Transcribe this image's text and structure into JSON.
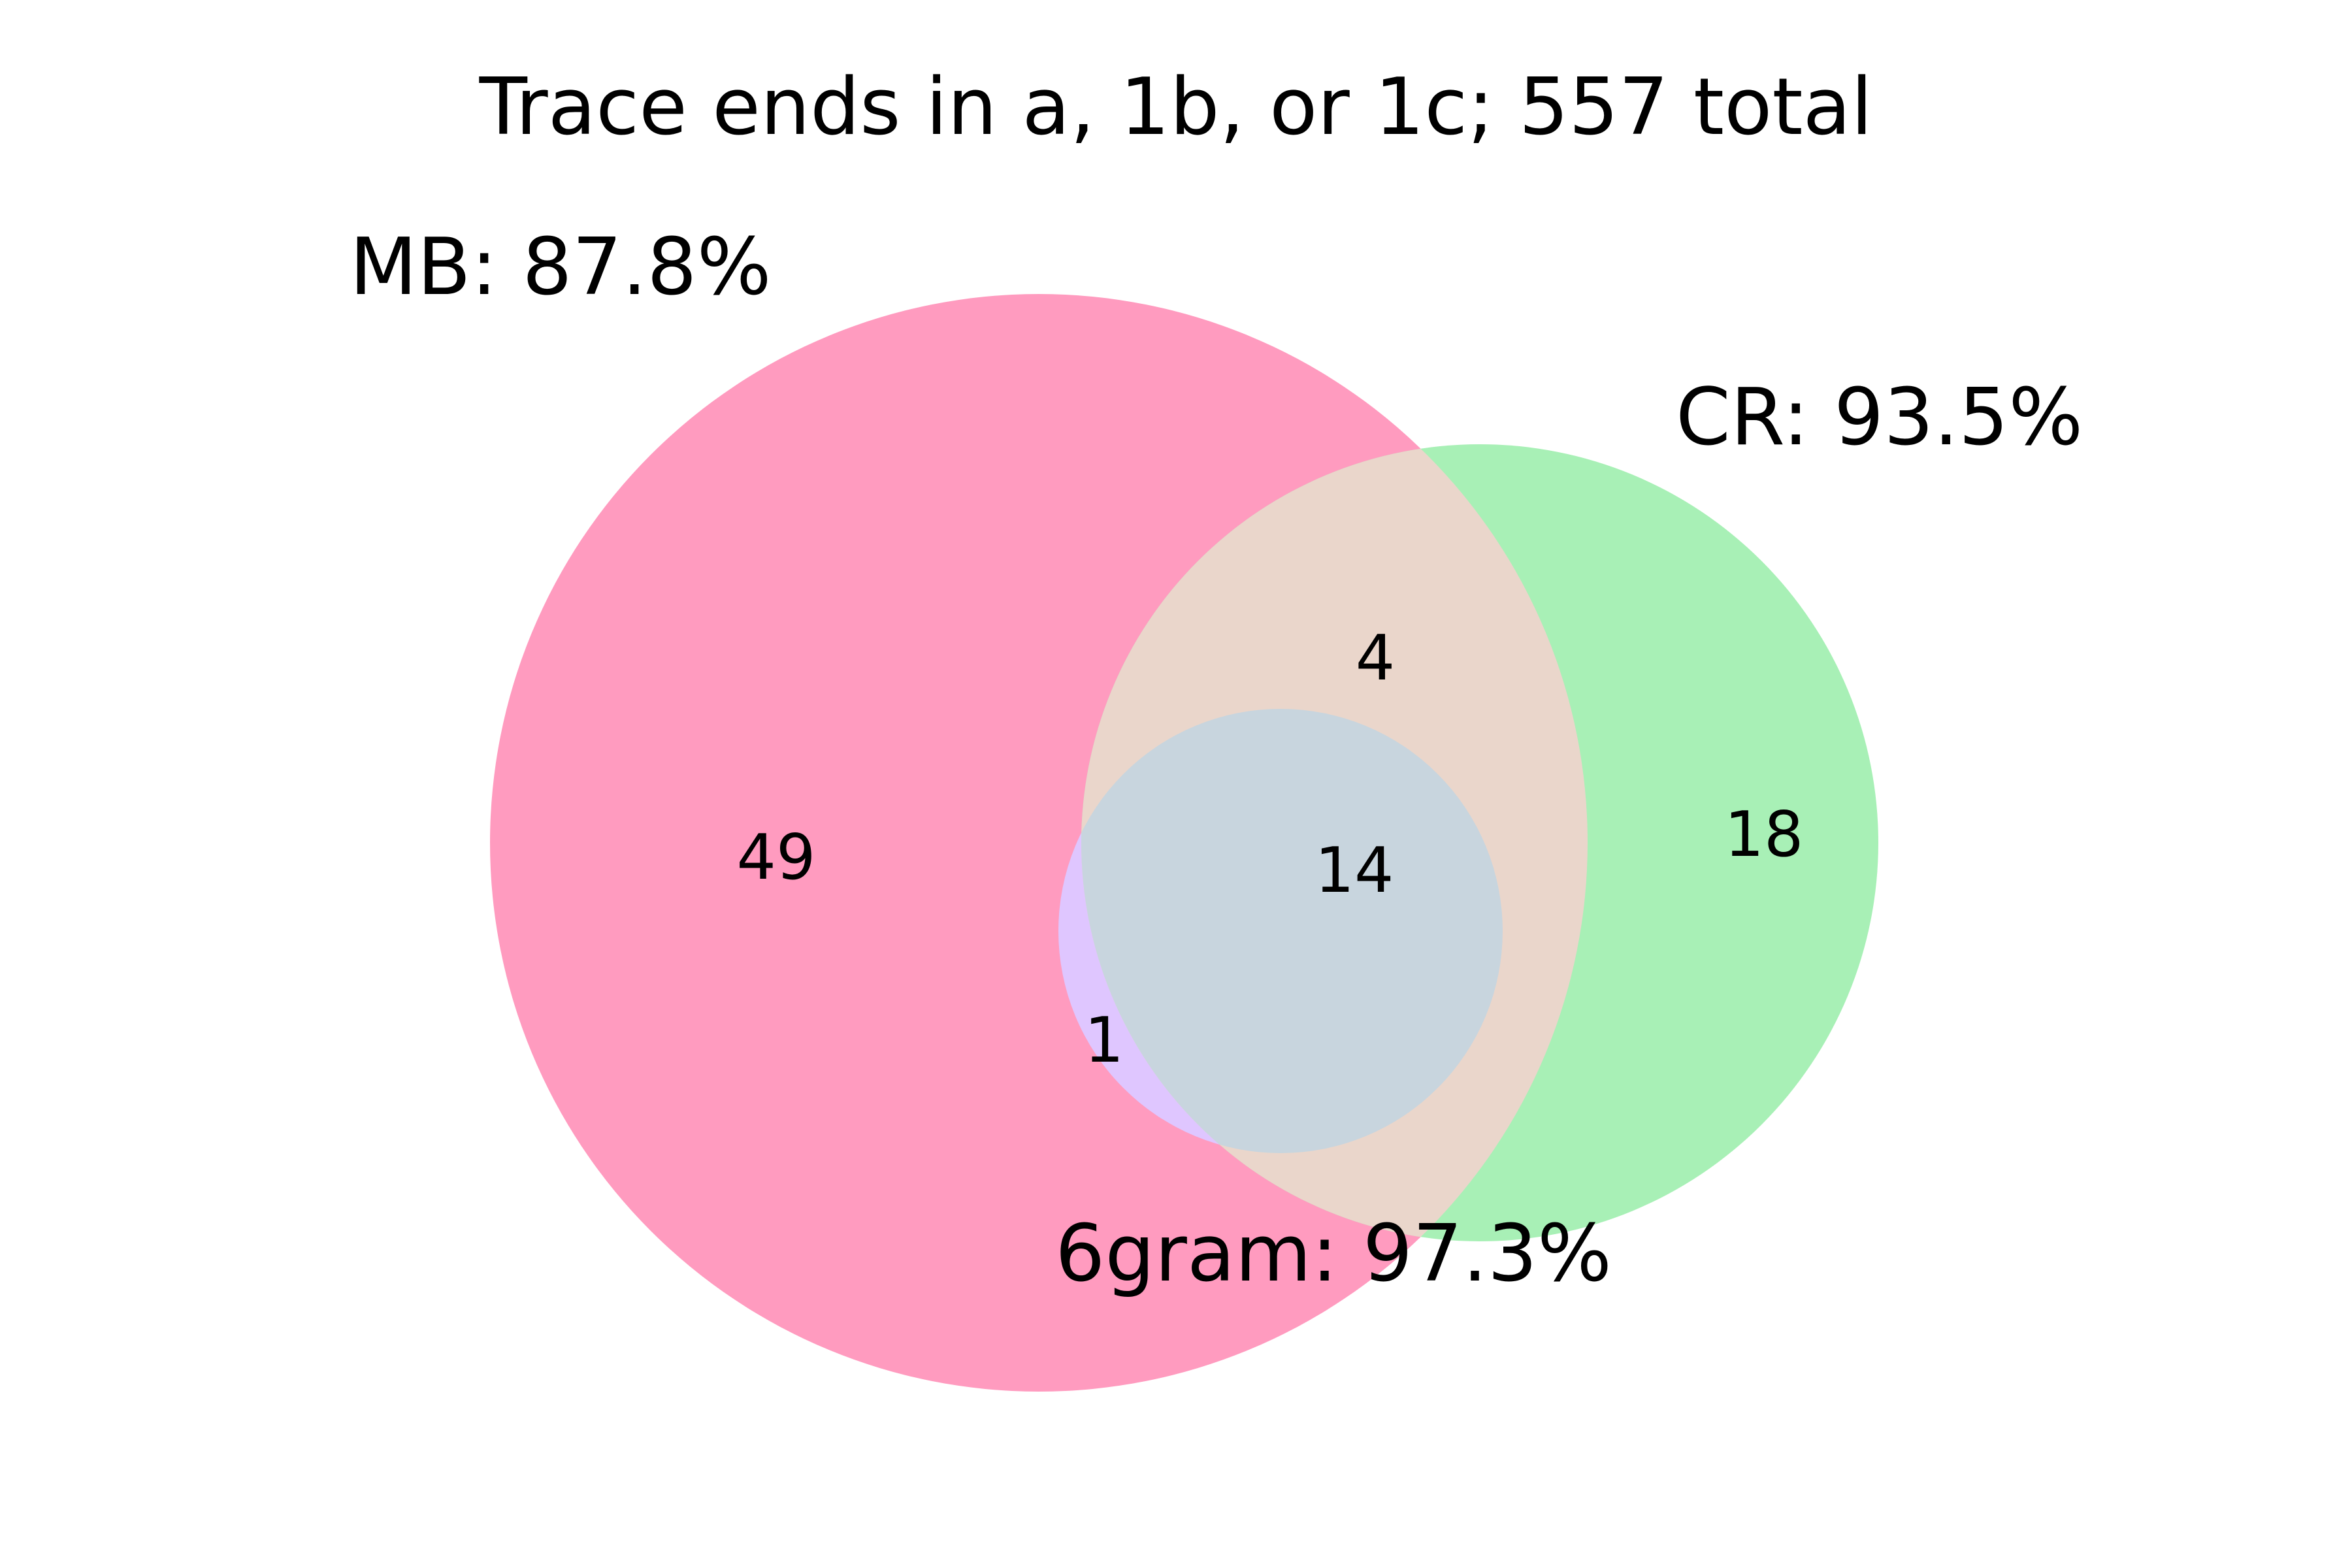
{
  "title": "Trace ends in a, 1b, or 1c; 557 total",
  "sets": {
    "mb": {
      "label": "MB: 87.8%",
      "color": "#ff9bbf"
    },
    "cr": {
      "label": "CR: 93.5%",
      "color": "#a8f0b6"
    },
    "sixgram": {
      "label": "6gram: 97.3%",
      "color": "#dfc6ff"
    }
  },
  "overlap_colors": {
    "mb_cr": "#ead6cb",
    "all_three": "#c8d5de"
  },
  "regions": {
    "mb_only": "49",
    "cr_only": "18",
    "mb_cr_only": "4",
    "all_three": "14",
    "mb_sixgram_only": "1"
  }
}
